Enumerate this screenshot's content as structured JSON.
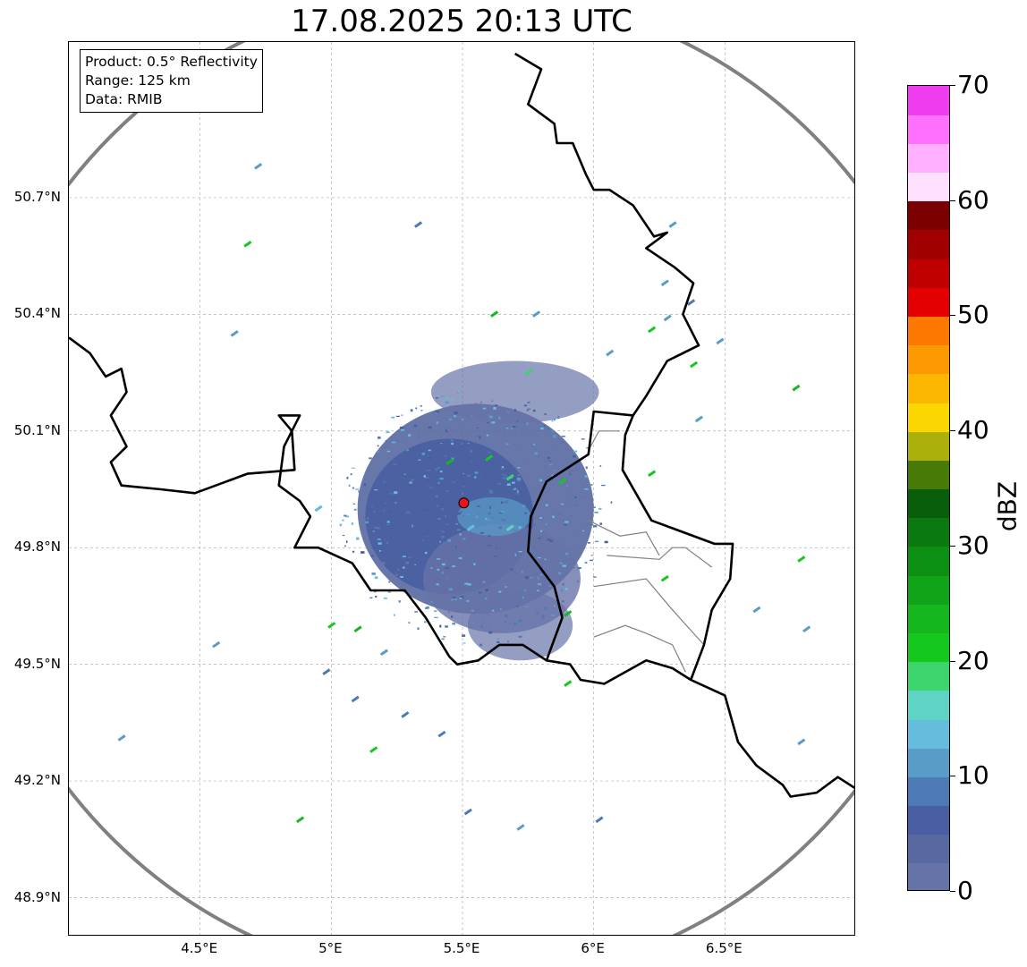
{
  "title": "17.08.2025 20:13 UTC",
  "info": {
    "product": "Product: 0.5° Reflectivity",
    "range": "Range: 125 km",
    "data": "Data: RMIB"
  },
  "axes": {
    "lon_range": [
      4.0,
      7.0
    ],
    "lat_range": [
      48.8,
      51.1
    ],
    "lon_ticks": [
      {
        "v": 4.5,
        "label": "4.5°E"
      },
      {
        "v": 5.0,
        "label": "5°E"
      },
      {
        "v": 5.5,
        "label": "5.5°E"
      },
      {
        "v": 6.0,
        "label": "6°E"
      },
      {
        "v": 6.5,
        "label": "6.5°E"
      }
    ],
    "lat_ticks": [
      {
        "v": 50.7,
        "label": "50.7°N"
      },
      {
        "v": 50.4,
        "label": "50.4°N"
      },
      {
        "v": 50.1,
        "label": "50.1°N"
      },
      {
        "v": 49.8,
        "label": "49.8°N"
      },
      {
        "v": 49.5,
        "label": "49.5°N"
      },
      {
        "v": 49.2,
        "label": "49.2°N"
      },
      {
        "v": 48.9,
        "label": "48.9°N"
      }
    ],
    "grid": true
  },
  "radar_site": {
    "lon": 5.505,
    "lat": 49.915,
    "color": "#e8141c"
  },
  "range_ring_color": "#808080",
  "colorbar": {
    "label": "dBZ",
    "min": 0,
    "max": 70,
    "ticks": [
      {
        "v": 0,
        "label": "0"
      },
      {
        "v": 10,
        "label": "10"
      },
      {
        "v": 20,
        "label": "20"
      },
      {
        "v": 30,
        "label": "30"
      },
      {
        "v": 40,
        "label": "40"
      },
      {
        "v": 50,
        "label": "50"
      },
      {
        "v": 60,
        "label": "60"
      },
      {
        "v": 70,
        "label": "70"
      }
    ],
    "colors": [
      "#6673a8",
      "#5868a0",
      "#485ea0",
      "#4d7ab4",
      "#5a9cc8",
      "#66bcdc",
      "#60d4c4",
      "#3cd46c",
      "#14c81e",
      "#14b81e",
      "#10a418",
      "#0c9014",
      "#0a7a10",
      "#085e0a",
      "#487a08",
      "#acb00a",
      "#fcd600",
      "#fcb800",
      "#fc9800",
      "#fc7800",
      "#e40000",
      "#c00000",
      "#a00000",
      "#7c0000",
      "#ffe0ff",
      "#ffb0ff",
      "#ff70ff",
      "#ee3cee"
    ]
  },
  "borders": {
    "country": [
      [
        [
          4.0,
          50.34
        ],
        [
          4.08,
          50.3
        ],
        [
          4.14,
          50.24
        ],
        [
          4.2,
          50.26
        ],
        [
          4.22,
          50.2
        ],
        [
          4.16,
          50.14
        ],
        [
          4.22,
          50.06
        ],
        [
          4.16,
          50.02
        ],
        [
          4.2,
          49.96
        ],
        [
          4.35,
          49.95
        ],
        [
          4.48,
          49.94
        ],
        [
          4.6,
          49.97
        ],
        [
          4.68,
          49.99
        ],
        [
          4.86,
          50.0
        ],
        [
          4.85,
          50.1
        ],
        [
          4.8,
          50.14
        ],
        [
          4.88,
          50.14
        ],
        [
          4.82,
          50.06
        ],
        [
          4.8,
          49.96
        ],
        [
          4.88,
          49.92
        ],
        [
          4.92,
          49.88
        ],
        [
          4.86,
          49.8
        ],
        [
          4.95,
          49.8
        ],
        [
          5.08,
          49.76
        ],
        [
          5.15,
          49.69
        ],
        [
          5.28,
          49.69
        ],
        [
          5.36,
          49.62
        ],
        [
          5.45,
          49.52
        ],
        [
          5.48,
          49.5
        ],
        [
          5.56,
          49.51
        ],
        [
          5.64,
          49.55
        ],
        [
          5.73,
          49.55
        ],
        [
          5.82,
          49.51
        ],
        [
          5.91,
          49.5
        ],
        [
          5.95,
          49.46
        ],
        [
          6.04,
          49.45
        ],
        [
          6.2,
          49.51
        ],
        [
          6.3,
          49.49
        ],
        [
          6.37,
          49.46
        ],
        [
          6.5,
          49.42
        ],
        [
          6.55,
          49.3
        ],
        [
          6.62,
          49.24
        ],
        [
          6.72,
          49.19
        ],
        [
          6.75,
          49.16
        ],
        [
          6.85,
          49.17
        ],
        [
          6.93,
          49.21
        ],
        [
          7.0,
          49.18
        ]
      ],
      [
        [
          5.7,
          51.07
        ],
        [
          5.8,
          51.03
        ],
        [
          5.75,
          50.94
        ],
        [
          5.85,
          50.89
        ],
        [
          5.86,
          50.84
        ],
        [
          5.92,
          50.84
        ],
        [
          5.97,
          50.76
        ],
        [
          6.0,
          50.72
        ],
        [
          6.06,
          50.72
        ],
        [
          6.15,
          50.68
        ],
        [
          6.23,
          50.6
        ],
        [
          6.28,
          50.61
        ],
        [
          6.2,
          50.57
        ],
        [
          6.31,
          50.52
        ],
        [
          6.38,
          50.48
        ],
        [
          6.34,
          50.4
        ],
        [
          6.4,
          50.32
        ],
        [
          6.28,
          50.28
        ],
        [
          6.2,
          50.19
        ],
        [
          6.15,
          50.14
        ],
        [
          6.12,
          50.09
        ],
        [
          6.11,
          50.0
        ],
        [
          6.22,
          49.87
        ],
        [
          6.3,
          49.85
        ],
        [
          6.46,
          49.81
        ],
        [
          6.53,
          49.81
        ],
        [
          6.52,
          49.72
        ],
        [
          6.45,
          49.64
        ],
        [
          6.42,
          49.55
        ],
        [
          6.37,
          49.46
        ]
      ],
      [
        [
          6.15,
          50.14
        ],
        [
          6.0,
          50.15
        ],
        [
          5.98,
          50.04
        ],
        [
          5.82,
          49.97
        ],
        [
          5.76,
          49.88
        ],
        [
          5.75,
          49.79
        ],
        [
          5.85,
          49.7
        ],
        [
          5.88,
          49.62
        ],
        [
          5.82,
          49.51
        ]
      ]
    ],
    "regional": [
      [
        [
          6.1,
          50.1
        ],
        [
          6.02,
          50.1
        ],
        [
          5.98,
          50.05
        ]
      ],
      [
        [
          6.05,
          49.78
        ],
        [
          6.25,
          49.77
        ],
        [
          6.3,
          49.8
        ],
        [
          6.35,
          49.8
        ],
        [
          6.45,
          49.75
        ]
      ],
      [
        [
          6.0,
          49.7
        ],
        [
          6.2,
          49.72
        ],
        [
          6.3,
          49.64
        ],
        [
          6.42,
          49.55
        ]
      ],
      [
        [
          6.0,
          49.57
        ],
        [
          6.12,
          49.6
        ],
        [
          6.2,
          49.58
        ],
        [
          6.3,
          49.55
        ],
        [
          6.35,
          49.48
        ]
      ],
      [
        [
          5.98,
          49.87
        ],
        [
          6.1,
          49.83
        ],
        [
          6.2,
          49.84
        ],
        [
          6.25,
          49.78
        ]
      ]
    ]
  },
  "echo_areas": [
    {
      "cx": 5.55,
      "cy": 49.9,
      "rx": 0.45,
      "ry": 0.27,
      "color": "#5868a0",
      "opacity": 0.9
    },
    {
      "cx": 5.45,
      "cy": 49.88,
      "rx": 0.32,
      "ry": 0.2,
      "color": "#485ea0",
      "opacity": 0.9
    },
    {
      "cx": 5.65,
      "cy": 49.72,
      "rx": 0.3,
      "ry": 0.14,
      "color": "#6673a8",
      "opacity": 0.8
    },
    {
      "cx": 5.72,
      "cy": 49.6,
      "rx": 0.2,
      "ry": 0.09,
      "color": "#6673a8",
      "opacity": 0.7
    },
    {
      "cx": 5.7,
      "cy": 50.2,
      "rx": 0.32,
      "ry": 0.08,
      "color": "#6673a8",
      "opacity": 0.7
    },
    {
      "cx": 5.62,
      "cy": 49.88,
      "rx": 0.14,
      "ry": 0.05,
      "color": "#5a9cc8",
      "opacity": 0.7
    }
  ],
  "echo_cells": [
    {
      "lon": 4.72,
      "lat": 50.78,
      "c": "#5a9cc8"
    },
    {
      "lon": 4.68,
      "lat": 50.58,
      "c": "#14c81e"
    },
    {
      "lon": 4.63,
      "lat": 50.35,
      "c": "#5a9cc8"
    },
    {
      "lon": 5.33,
      "lat": 50.63,
      "c": "#4d7ab4"
    },
    {
      "lon": 5.62,
      "lat": 50.4,
      "c": "#14b81e"
    },
    {
      "lon": 5.78,
      "lat": 50.4,
      "c": "#5a9cc8"
    },
    {
      "lon": 6.06,
      "lat": 50.3,
      "c": "#5a9cc8"
    },
    {
      "lon": 6.22,
      "lat": 50.36,
      "c": "#14c81e"
    },
    {
      "lon": 6.28,
      "lat": 50.39,
      "c": "#5a9cc8"
    },
    {
      "lon": 6.37,
      "lat": 50.43,
      "c": "#4d7ab4"
    },
    {
      "lon": 6.48,
      "lat": 50.33,
      "c": "#5a9cc8"
    },
    {
      "lon": 6.38,
      "lat": 50.27,
      "c": "#14c81e"
    },
    {
      "lon": 6.77,
      "lat": 50.21,
      "c": "#14b81e"
    },
    {
      "lon": 6.4,
      "lat": 50.13,
      "c": "#5a9cc8"
    },
    {
      "lon": 6.79,
      "lat": 49.77,
      "c": "#14c81e"
    },
    {
      "lon": 6.62,
      "lat": 49.64,
      "c": "#5a9cc8"
    },
    {
      "lon": 6.81,
      "lat": 49.59,
      "c": "#5a9cc8"
    },
    {
      "lon": 6.79,
      "lat": 49.3,
      "c": "#5a9cc8"
    },
    {
      "lon": 4.88,
      "lat": 49.1,
      "c": "#14b81e"
    },
    {
      "lon": 4.56,
      "lat": 49.55,
      "c": "#5a9cc8"
    },
    {
      "lon": 4.2,
      "lat": 49.31,
      "c": "#5a9cc8"
    },
    {
      "lon": 4.98,
      "lat": 49.48,
      "c": "#4d7ab4"
    },
    {
      "lon": 5.09,
      "lat": 49.41,
      "c": "#4d7ab4"
    },
    {
      "lon": 5.28,
      "lat": 49.37,
      "c": "#4d7ab4"
    },
    {
      "lon": 5.42,
      "lat": 49.32,
      "c": "#4d7ab4"
    },
    {
      "lon": 5.16,
      "lat": 49.28,
      "c": "#14c81e"
    },
    {
      "lon": 5.0,
      "lat": 49.6,
      "c": "#14c81e"
    },
    {
      "lon": 5.1,
      "lat": 49.59,
      "c": "#14b81e"
    },
    {
      "lon": 5.2,
      "lat": 49.53,
      "c": "#5a9cc8"
    },
    {
      "lon": 5.52,
      "lat": 49.12,
      "c": "#4d7ab4"
    },
    {
      "lon": 5.72,
      "lat": 49.08,
      "c": "#5a9cc8"
    },
    {
      "lon": 6.02,
      "lat": 49.1,
      "c": "#4d7ab4"
    },
    {
      "lon": 5.9,
      "lat": 49.45,
      "c": "#14c81e"
    },
    {
      "lon": 5.9,
      "lat": 49.63,
      "c": "#14b81e"
    },
    {
      "lon": 6.27,
      "lat": 49.72,
      "c": "#14c81e"
    },
    {
      "lon": 5.6,
      "lat": 50.03,
      "c": "#14c81e"
    },
    {
      "lon": 5.45,
      "lat": 50.02,
      "c": "#14b81e"
    },
    {
      "lon": 5.68,
      "lat": 49.98,
      "c": "#3cd46c"
    },
    {
      "lon": 5.75,
      "lat": 50.25,
      "c": "#3cd46c"
    },
    {
      "lon": 5.88,
      "lat": 49.97,
      "c": "#14c81e"
    },
    {
      "lon": 5.68,
      "lat": 49.85,
      "c": "#60d4c4"
    },
    {
      "lon": 5.53,
      "lat": 49.85,
      "c": "#66bcdc"
    },
    {
      "lon": 6.22,
      "lat": 49.99,
      "c": "#14c81e"
    },
    {
      "lon": 4.95,
      "lat": 49.9,
      "c": "#66bcdc"
    },
    {
      "lon": 6.27,
      "lat": 50.48,
      "c": "#5a9cc8"
    },
    {
      "lon": 6.3,
      "lat": 50.63,
      "c": "#5a9cc8"
    }
  ]
}
